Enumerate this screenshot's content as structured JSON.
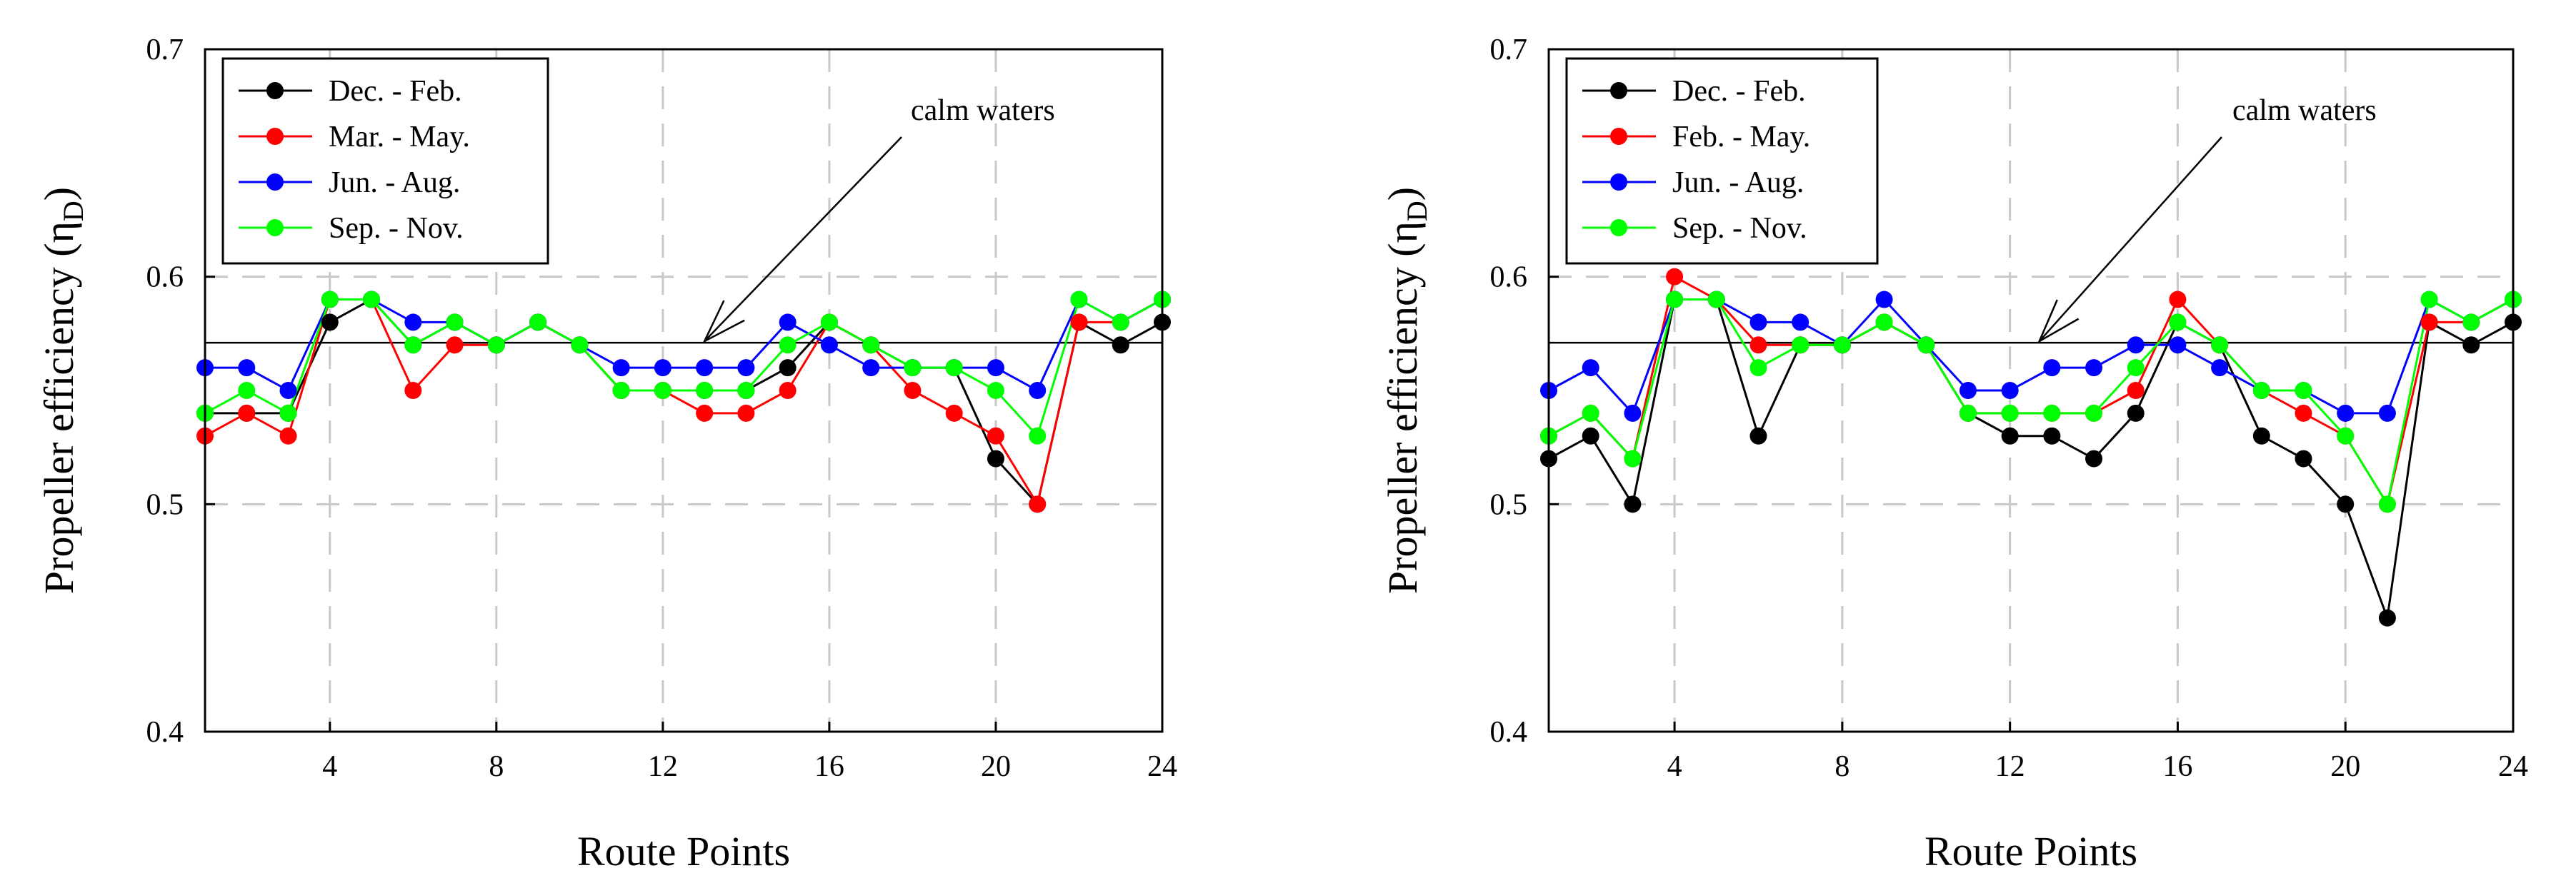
{
  "chart_data": [
    {
      "type": "line",
      "panel": "left",
      "xlabel": "Route Points",
      "ylabel": "Propeller efficiency (η",
      "ylabel_subscript": "D",
      "ylabel_close": ")",
      "xlim": [
        1,
        24
      ],
      "ylim": [
        0.4,
        0.7
      ],
      "xticks": [
        4,
        8,
        12,
        16,
        20,
        24
      ],
      "yticks": [
        0.4,
        0.5,
        0.6,
        0.7
      ],
      "ytick_labels": [
        "0.4",
        "0.5",
        "0.6",
        "0.7"
      ],
      "grid": "dashed",
      "legend_position": "top-left",
      "reference_line": {
        "label": "calm waters",
        "value": 0.571
      },
      "annotation": {
        "text": "calm waters",
        "points_to_x": 13
      },
      "x": [
        1,
        2,
        3,
        4,
        5,
        6,
        7,
        8,
        9,
        10,
        11,
        12,
        13,
        14,
        15,
        16,
        17,
        18,
        19,
        20,
        21,
        22,
        23,
        24
      ],
      "series": [
        {
          "name": "Dec. - Feb.",
          "color": "#000000",
          "values": [
            0.54,
            0.54,
            0.54,
            0.58,
            0.59,
            0.57,
            0.58,
            0.57,
            0.58,
            0.57,
            0.55,
            0.55,
            0.55,
            0.55,
            0.56,
            0.58,
            0.57,
            0.56,
            0.56,
            0.52,
            0.5,
            0.58,
            0.57,
            0.58
          ]
        },
        {
          "name": "Mar. - May.",
          "color": "#ff0000",
          "values": [
            0.53,
            0.54,
            0.53,
            0.59,
            0.59,
            0.55,
            0.57,
            0.57,
            0.58,
            0.57,
            0.55,
            0.55,
            0.54,
            0.54,
            0.55,
            0.58,
            0.57,
            0.55,
            0.54,
            0.53,
            0.5,
            0.58,
            0.58,
            0.59
          ]
        },
        {
          "name": "Jun. - Aug.",
          "color": "#0000ff",
          "values": [
            0.56,
            0.56,
            0.55,
            0.59,
            0.59,
            0.58,
            0.58,
            0.57,
            0.58,
            0.57,
            0.56,
            0.56,
            0.56,
            0.56,
            0.58,
            0.57,
            0.56,
            0.56,
            0.56,
            0.56,
            0.55,
            0.59,
            0.58,
            0.59
          ]
        },
        {
          "name": "Sep. - Nov.",
          "color": "#00ff00",
          "values": [
            0.54,
            0.55,
            0.54,
            0.59,
            0.59,
            0.57,
            0.58,
            0.57,
            0.58,
            0.57,
            0.55,
            0.55,
            0.55,
            0.55,
            0.57,
            0.58,
            0.57,
            0.56,
            0.56,
            0.55,
            0.53,
            0.59,
            0.58,
            0.59
          ]
        }
      ]
    },
    {
      "type": "line",
      "panel": "right",
      "xlabel": "Route Points",
      "ylabel": "Propeller efficiency (η",
      "ylabel_subscript": "D",
      "ylabel_close": ")",
      "xlim": [
        1,
        24
      ],
      "ylim": [
        0.4,
        0.7
      ],
      "xticks": [
        4,
        8,
        12,
        16,
        20,
        24
      ],
      "yticks": [
        0.4,
        0.5,
        0.6,
        0.7
      ],
      "ytick_labels": [
        "0.4",
        "0.5",
        "0.6",
        "0.7"
      ],
      "grid": "dashed",
      "legend_position": "top-left",
      "reference_line": {
        "label": "calm waters",
        "value": 0.571
      },
      "annotation": {
        "text": "calm waters",
        "points_to_x": 12.7
      },
      "x": [
        1,
        2,
        3,
        4,
        5,
        6,
        7,
        8,
        9,
        10,
        11,
        12,
        13,
        14,
        15,
        16,
        17,
        18,
        19,
        20,
        21,
        22,
        23,
        24
      ],
      "series": [
        {
          "name": "Dec. - Feb.",
          "color": "#000000",
          "values": [
            0.52,
            0.53,
            0.5,
            0.59,
            0.59,
            0.53,
            0.57,
            0.57,
            0.58,
            0.57,
            0.54,
            0.53,
            0.53,
            0.52,
            0.54,
            0.58,
            0.57,
            0.53,
            0.52,
            0.5,
            0.45,
            0.58,
            0.57,
            0.58
          ]
        },
        {
          "name": "Feb. - May.",
          "color": "#ff0000",
          "values": [
            0.53,
            0.54,
            0.52,
            0.6,
            0.59,
            0.57,
            0.57,
            0.57,
            0.58,
            0.57,
            0.54,
            0.54,
            0.54,
            0.54,
            0.55,
            0.59,
            0.57,
            0.55,
            0.54,
            0.53,
            0.5,
            0.58,
            0.58,
            0.59
          ]
        },
        {
          "name": "Jun. - Aug.",
          "color": "#0000ff",
          "values": [
            0.55,
            0.56,
            0.54,
            0.59,
            0.59,
            0.58,
            0.58,
            0.57,
            0.59,
            0.57,
            0.55,
            0.55,
            0.56,
            0.56,
            0.57,
            0.57,
            0.56,
            0.55,
            0.55,
            0.54,
            0.54,
            0.59,
            0.58,
            0.59
          ]
        },
        {
          "name": "Sep. - Nov.",
          "color": "#00ff00",
          "values": [
            0.53,
            0.54,
            0.52,
            0.59,
            0.59,
            0.56,
            0.57,
            0.57,
            0.58,
            0.57,
            0.54,
            0.54,
            0.54,
            0.54,
            0.56,
            0.58,
            0.57,
            0.55,
            0.55,
            0.53,
            0.5,
            0.59,
            0.58,
            0.59
          ]
        }
      ]
    }
  ]
}
